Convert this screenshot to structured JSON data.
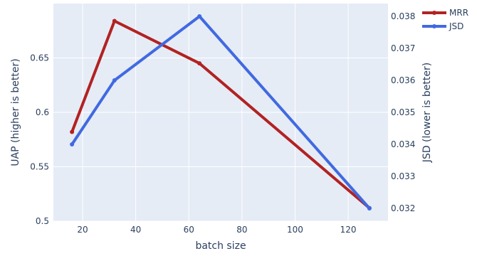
{
  "chart_data": {
    "type": "line",
    "x": [
      16,
      32,
      64,
      128
    ],
    "xlabel": "batch size",
    "ylabel_left": "UAP (higher is better)",
    "ylabel_right": "JSD (lower is better)",
    "xlim": [
      9,
      135
    ],
    "ylim_left": [
      0.5,
      0.7
    ],
    "ylim_right": [
      0.0316,
      0.0384
    ],
    "x_ticks": [
      20,
      40,
      60,
      80,
      100,
      120
    ],
    "y_ticks_left": [
      0.5,
      0.55,
      0.6,
      0.65
    ],
    "y_ticks_left_labels": [
      "0.5",
      "0.55",
      "0.6",
      "0.65"
    ],
    "y_ticks_right": [
      0.032,
      0.033,
      0.034,
      0.035,
      0.036,
      0.037,
      0.038
    ],
    "y_ticks_right_labels": [
      "0.032",
      "0.033",
      "0.034",
      "0.035",
      "0.036",
      "0.037",
      "0.038"
    ],
    "grid": true,
    "legend_position": "top-right",
    "series": [
      {
        "name": "MRR",
        "axis": "left",
        "color": "#b22222",
        "values": [
          0.582,
          0.684,
          0.645,
          0.512
        ]
      },
      {
        "name": "JSD",
        "axis": "right",
        "color": "#4169e1",
        "values": [
          0.034,
          0.036,
          0.038,
          0.032
        ]
      }
    ]
  }
}
